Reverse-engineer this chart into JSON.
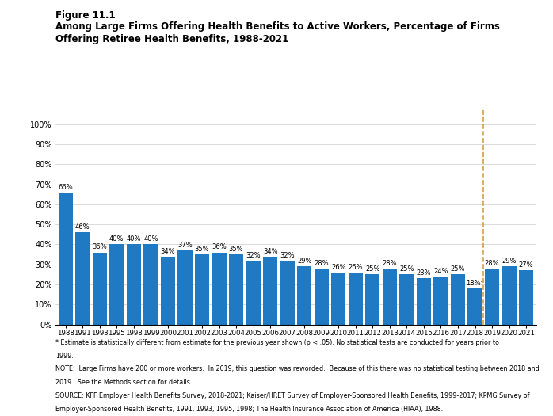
{
  "years": [
    "1988",
    "1991",
    "1993",
    "1995",
    "1998",
    "1999",
    "2000",
    "2001",
    "2002",
    "2003",
    "2004",
    "2005",
    "2006",
    "2007",
    "2008",
    "2009",
    "2010",
    "2011",
    "2012",
    "2013",
    "2014",
    "2015",
    "2016",
    "2017",
    "2018",
    "2019",
    "2020",
    "2021"
  ],
  "values": [
    66,
    46,
    36,
    40,
    40,
    40,
    34,
    37,
    35,
    36,
    35,
    32,
    34,
    32,
    29,
    28,
    26,
    26,
    25,
    28,
    25,
    23,
    24,
    25,
    18,
    28,
    29,
    27
  ],
  "bar_color": "#2079c3",
  "asterisk_bar": "2018",
  "dashed_line_after": "2018",
  "title_line1": "Figure 11.1",
  "title_line2": "Among Large Firms Offering Health Benefits to Active Workers, Percentage of Firms",
  "title_line3": "Offering Retiree Health Benefits, 1988-2021",
  "ylim": [
    0,
    108
  ],
  "yticks": [
    0,
    10,
    20,
    30,
    40,
    50,
    60,
    70,
    80,
    90,
    100
  ],
  "ytick_labels": [
    "0%",
    "10%",
    "20%",
    "30%",
    "40%",
    "50%",
    "60%",
    "70%",
    "80%",
    "90%",
    "100%"
  ],
  "footnote1": "* Estimate is statistically different from estimate for the previous year shown (p < .05). No statistical tests are conducted for years prior to",
  "footnote2": "1999.",
  "footnote3": "NOTE:  Large Firms have 200 or more workers.  In 2019, this question was reworded.  Because of this there was no statistical testing between 2018 and",
  "footnote4": "2019.  See the Methods section for details.",
  "footnote5": "SOURCE: KFF Employer Health Benefits Survey, 2018-2021; Kaiser/HRET Survey of Employer-Sponsored Health Benefits, 1999-2017; KPMG Survey of",
  "footnote6": "Employer-Sponsored Health Benefits, 1991, 1993, 1995, 1998; The Health Insurance Association of America (HIAA), 1988.",
  "dashed_line_color": "#d4a04a",
  "background_color": "#ffffff",
  "label_fontsize": 6.0,
  "tick_fontsize": 7.0,
  "title1_fontsize": 8.5,
  "title2_fontsize": 8.5,
  "footnote_fontsize": 5.8
}
